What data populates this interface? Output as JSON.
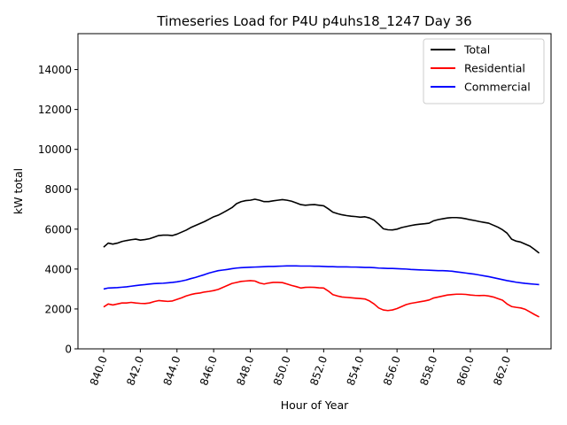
{
  "chart_data": {
    "type": "line",
    "title": "Timeseries Load for P4U p4uhs18_1247  Day 36",
    "xlabel": "Hour of Year",
    "ylabel": "kW total",
    "xlim": [
      838.6,
      864.4
    ],
    "ylim": [
      0,
      15800
    ],
    "x_ticks": [
      840,
      842,
      844,
      846,
      848,
      850,
      852,
      854,
      856,
      858,
      860,
      862
    ],
    "x_tick_labels": [
      "840.0",
      "842.0",
      "844.0",
      "846.0",
      "848.0",
      "850.0",
      "852.0",
      "854.0",
      "856.0",
      "858.0",
      "860.0",
      "862.0"
    ],
    "y_ticks": [
      0,
      2000,
      4000,
      6000,
      8000,
      10000,
      12000,
      14000
    ],
    "y_tick_labels": [
      "0",
      "2000",
      "4000",
      "6000",
      "8000",
      "10000",
      "12000",
      "14000"
    ],
    "grid": false,
    "legend_position": "top-right",
    "x": [
      840.0,
      840.25,
      840.5,
      840.75,
      841.0,
      841.25,
      841.5,
      841.75,
      842.0,
      842.25,
      842.5,
      842.75,
      843.0,
      843.25,
      843.5,
      843.75,
      844.0,
      844.25,
      844.5,
      844.75,
      845.0,
      845.25,
      845.5,
      845.75,
      846.0,
      846.25,
      846.5,
      846.75,
      847.0,
      847.25,
      847.5,
      847.75,
      848.0,
      848.25,
      848.5,
      848.75,
      849.0,
      849.25,
      849.5,
      849.75,
      850.0,
      850.25,
      850.5,
      850.75,
      851.0,
      851.25,
      851.5,
      851.75,
      852.0,
      852.25,
      852.5,
      852.75,
      853.0,
      853.25,
      853.5,
      853.75,
      854.0,
      854.25,
      854.5,
      854.75,
      855.0,
      855.25,
      855.5,
      855.75,
      856.0,
      856.25,
      856.5,
      856.75,
      857.0,
      857.25,
      857.5,
      857.75,
      858.0,
      858.25,
      858.5,
      858.75,
      859.0,
      859.25,
      859.5,
      859.75,
      860.0,
      860.25,
      860.5,
      860.75,
      861.0,
      861.25,
      861.5,
      861.75,
      862.0,
      862.25,
      862.5,
      862.75,
      863.0,
      863.25,
      863.5,
      863.75
    ],
    "series": [
      {
        "name": "Total",
        "color": "#000000",
        "values": [
          5100,
          5300,
          5250,
          5300,
          5380,
          5430,
          5470,
          5500,
          5450,
          5480,
          5520,
          5600,
          5680,
          5700,
          5700,
          5680,
          5750,
          5850,
          5950,
          6080,
          6180,
          6280,
          6380,
          6500,
          6620,
          6700,
          6820,
          6950,
          7080,
          7280,
          7380,
          7430,
          7450,
          7500,
          7450,
          7380,
          7380,
          7420,
          7450,
          7480,
          7450,
          7400,
          7320,
          7230,
          7200,
          7220,
          7230,
          7200,
          7170,
          7020,
          6850,
          6780,
          6720,
          6680,
          6650,
          6630,
          6600,
          6620,
          6560,
          6450,
          6250,
          6020,
          5970,
          5960,
          6000,
          6080,
          6130,
          6180,
          6220,
          6250,
          6270,
          6300,
          6420,
          6480,
          6520,
          6560,
          6580,
          6580,
          6560,
          6520,
          6470,
          6430,
          6380,
          6340,
          6300,
          6200,
          6100,
          5970,
          5800,
          5500,
          5400,
          5350,
          5250,
          5150,
          4980,
          4800
        ]
      },
      {
        "name": "Residential",
        "color": "#ff0000",
        "values": [
          2100,
          2250,
          2200,
          2250,
          2300,
          2300,
          2330,
          2300,
          2280,
          2270,
          2300,
          2370,
          2420,
          2400,
          2380,
          2400,
          2480,
          2560,
          2650,
          2720,
          2770,
          2800,
          2850,
          2880,
          2920,
          2980,
          3080,
          3180,
          3280,
          3330,
          3380,
          3400,
          3420,
          3400,
          3300,
          3250,
          3300,
          3330,
          3330,
          3320,
          3250,
          3180,
          3120,
          3050,
          3080,
          3090,
          3080,
          3060,
          3050,
          2900,
          2720,
          2650,
          2600,
          2580,
          2560,
          2540,
          2520,
          2500,
          2400,
          2250,
          2050,
          1950,
          1920,
          1950,
          2020,
          2120,
          2220,
          2280,
          2320,
          2360,
          2400,
          2450,
          2550,
          2600,
          2650,
          2700,
          2720,
          2740,
          2740,
          2730,
          2700,
          2680,
          2670,
          2680,
          2650,
          2600,
          2520,
          2440,
          2250,
          2120,
          2080,
          2050,
          1980,
          1850,
          1720,
          1600
        ]
      },
      {
        "name": "Commercial",
        "color": "#0000ff",
        "values": [
          3000,
          3050,
          3060,
          3070,
          3090,
          3110,
          3140,
          3170,
          3200,
          3220,
          3250,
          3270,
          3280,
          3290,
          3310,
          3330,
          3360,
          3400,
          3450,
          3520,
          3580,
          3650,
          3720,
          3800,
          3860,
          3920,
          3950,
          3980,
          4020,
          4050,
          4070,
          4080,
          4090,
          4100,
          4110,
          4120,
          4130,
          4130,
          4140,
          4150,
          4160,
          4160,
          4160,
          4150,
          4150,
          4150,
          4140,
          4140,
          4130,
          4120,
          4120,
          4110,
          4110,
          4110,
          4100,
          4100,
          4090,
          4080,
          4080,
          4070,
          4050,
          4040,
          4030,
          4030,
          4020,
          4010,
          4000,
          3980,
          3970,
          3960,
          3950,
          3940,
          3930,
          3920,
          3920,
          3910,
          3890,
          3860,
          3830,
          3800,
          3770,
          3740,
          3700,
          3660,
          3620,
          3570,
          3520,
          3470,
          3420,
          3380,
          3340,
          3310,
          3280,
          3260,
          3240,
          3220
        ]
      }
    ]
  }
}
